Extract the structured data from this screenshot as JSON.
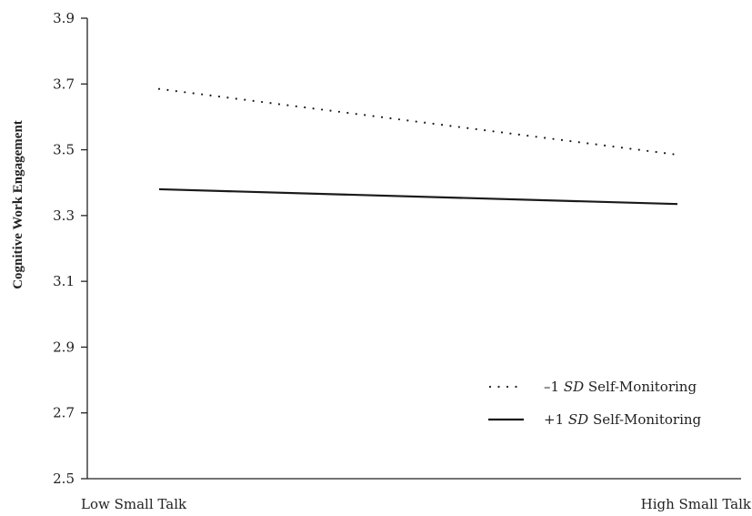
{
  "chart_data": {
    "type": "line",
    "title": "",
    "xlabel": "",
    "ylabel": "Cognitive Work Engagement",
    "categories": [
      "Low Small Talk",
      "High Small Talk"
    ],
    "ylim": [
      2.5,
      3.9
    ],
    "yticks": [
      2.5,
      2.7,
      2.9,
      3.1,
      3.3,
      3.5,
      3.7,
      3.9
    ],
    "grid": false,
    "legend_position": "bottom-right",
    "series": [
      {
        "name": "–1 SD Self-Monitoring",
        "legend_prefix": "–1 ",
        "legend_italic": "SD",
        "legend_suffix": " Self-Monitoring",
        "style": "dotted",
        "values": [
          3.685,
          3.485
        ]
      },
      {
        "name": "+1 SD Self-Monitoring",
        "legend_prefix": "+1 ",
        "legend_italic": "SD",
        "legend_suffix": " Self-Monitoring",
        "style": "solid",
        "values": [
          3.38,
          3.335
        ]
      }
    ]
  }
}
